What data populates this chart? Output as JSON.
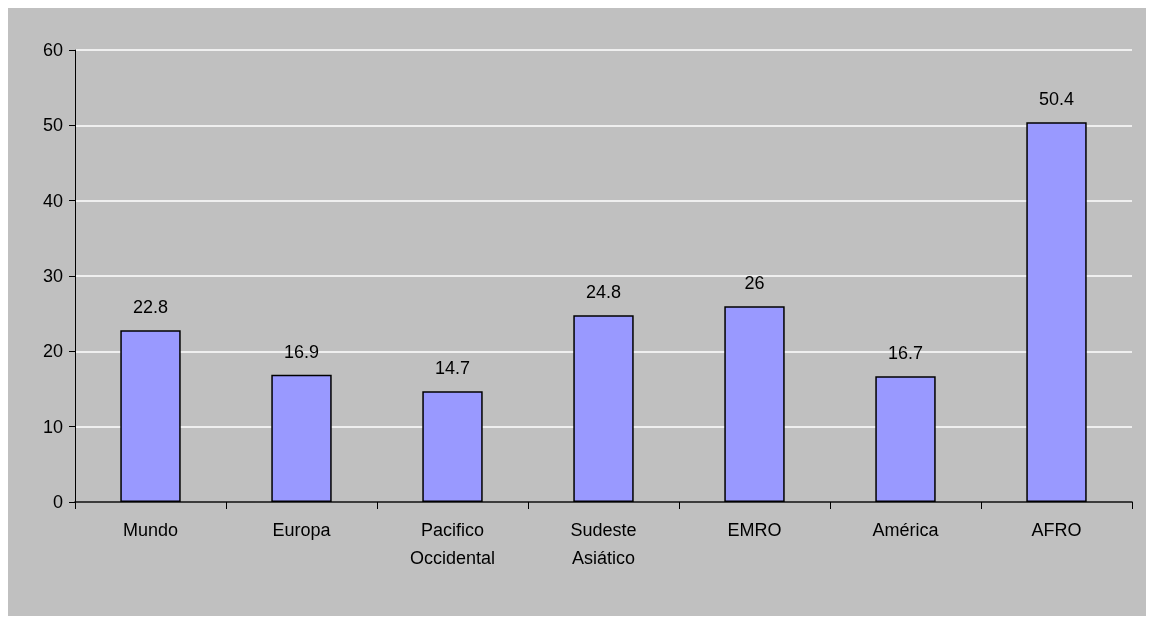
{
  "chart_data": {
    "type": "bar",
    "categories": [
      "Mundo",
      "Europa",
      "Pacifico Occidental",
      "Sudeste Asiático",
      "EMRO",
      "América",
      "AFRO"
    ],
    "values": [
      22.8,
      16.9,
      14.7,
      24.8,
      26,
      16.7,
      50.4
    ],
    "color": "#9999ff",
    "ylim": [
      0,
      60
    ],
    "yticks": [
      0,
      10,
      20,
      30,
      40,
      50,
      60
    ],
    "grid": "y",
    "data_labels": true
  }
}
